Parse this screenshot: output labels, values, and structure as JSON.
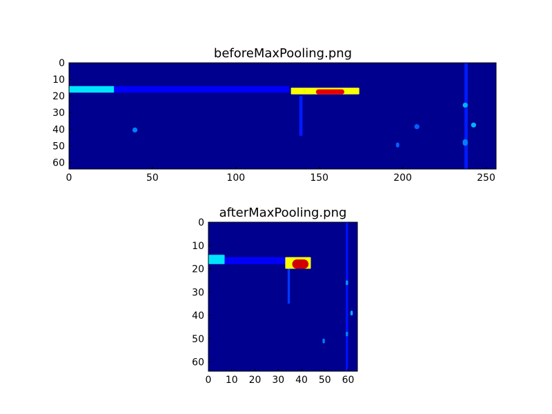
{
  "chart_data": [
    {
      "type": "heatmap",
      "title": "beforeMaxPooling.png",
      "xlim": [
        0,
        256
      ],
      "ylim": [
        64,
        0
      ],
      "xticks": [
        0,
        50,
        100,
        150,
        200,
        250
      ],
      "yticks": [
        0,
        10,
        20,
        30,
        40,
        50,
        60
      ],
      "colormap": "jet",
      "background_color": "#00008f",
      "features": [
        {
          "shape": "band",
          "x": [
            0,
            27
          ],
          "y": [
            14,
            18
          ],
          "intensity": 0.35
        },
        {
          "shape": "band",
          "x": [
            27,
            132
          ],
          "y": [
            14,
            18
          ],
          "intensity": 0.12
        },
        {
          "shape": "band",
          "x": [
            133,
            174
          ],
          "y": [
            15,
            19
          ],
          "intensity": 0.62
        },
        {
          "shape": "spot",
          "x": [
            148,
            165
          ],
          "y": [
            16,
            19
          ],
          "intensity": 0.9
        },
        {
          "shape": "column",
          "x": [
            237,
            239
          ],
          "y": [
            0,
            64
          ],
          "intensity": 0.15
        },
        {
          "shape": "column",
          "x": [
            138,
            140
          ],
          "y": [
            20,
            44
          ],
          "intensity": 0.15
        },
        {
          "shape": "spot",
          "x": [
            236,
            239
          ],
          "y": [
            24,
            27
          ],
          "intensity": 0.3
        },
        {
          "shape": "spot",
          "x": [
            241,
            244
          ],
          "y": [
            36,
            39
          ],
          "intensity": 0.3
        },
        {
          "shape": "spot",
          "x": [
            38,
            41
          ],
          "y": [
            39,
            42
          ],
          "intensity": 0.25
        },
        {
          "shape": "spot",
          "x": [
            207,
            210
          ],
          "y": [
            37,
            40
          ],
          "intensity": 0.22
        },
        {
          "shape": "spot",
          "x": [
            196,
            198
          ],
          "y": [
            48,
            51
          ],
          "intensity": 0.22
        },
        {
          "shape": "spot",
          "x": [
            236,
            239
          ],
          "y": [
            46,
            50
          ],
          "intensity": 0.25
        }
      ]
    },
    {
      "type": "heatmap",
      "title": "afterMaxPooling.png",
      "xlim": [
        0,
        64
      ],
      "ylim": [
        64,
        0
      ],
      "xticks": [
        0,
        10,
        20,
        30,
        40,
        50,
        60
      ],
      "yticks": [
        0,
        10,
        20,
        30,
        40,
        50,
        60
      ],
      "colormap": "jet",
      "background_color": "#00008f",
      "features": [
        {
          "shape": "band",
          "x": [
            0,
            7
          ],
          "y": [
            14,
            18
          ],
          "intensity": 0.35
        },
        {
          "shape": "band",
          "x": [
            7,
            33
          ],
          "y": [
            15,
            18
          ],
          "intensity": 0.12
        },
        {
          "shape": "band",
          "x": [
            33,
            44
          ],
          "y": [
            15,
            20
          ],
          "intensity": 0.62
        },
        {
          "shape": "spot",
          "x": [
            36,
            43
          ],
          "y": [
            16,
            20
          ],
          "intensity": 0.92
        },
        {
          "shape": "column",
          "x": [
            34,
            35
          ],
          "y": [
            20,
            35
          ],
          "intensity": 0.18
        },
        {
          "shape": "column",
          "x": [
            59,
            60
          ],
          "y": [
            0,
            64
          ],
          "intensity": 0.14
        },
        {
          "shape": "spot",
          "x": [
            59,
            60
          ],
          "y": [
            25,
            27
          ],
          "intensity": 0.28
        },
        {
          "shape": "spot",
          "x": [
            61,
            62
          ],
          "y": [
            38,
            40
          ],
          "intensity": 0.3
        },
        {
          "shape": "spot",
          "x": [
            49,
            50
          ],
          "y": [
            50,
            52
          ],
          "intensity": 0.25
        },
        {
          "shape": "spot",
          "x": [
            59,
            60
          ],
          "y": [
            47,
            49
          ],
          "intensity": 0.25
        }
      ]
    }
  ]
}
